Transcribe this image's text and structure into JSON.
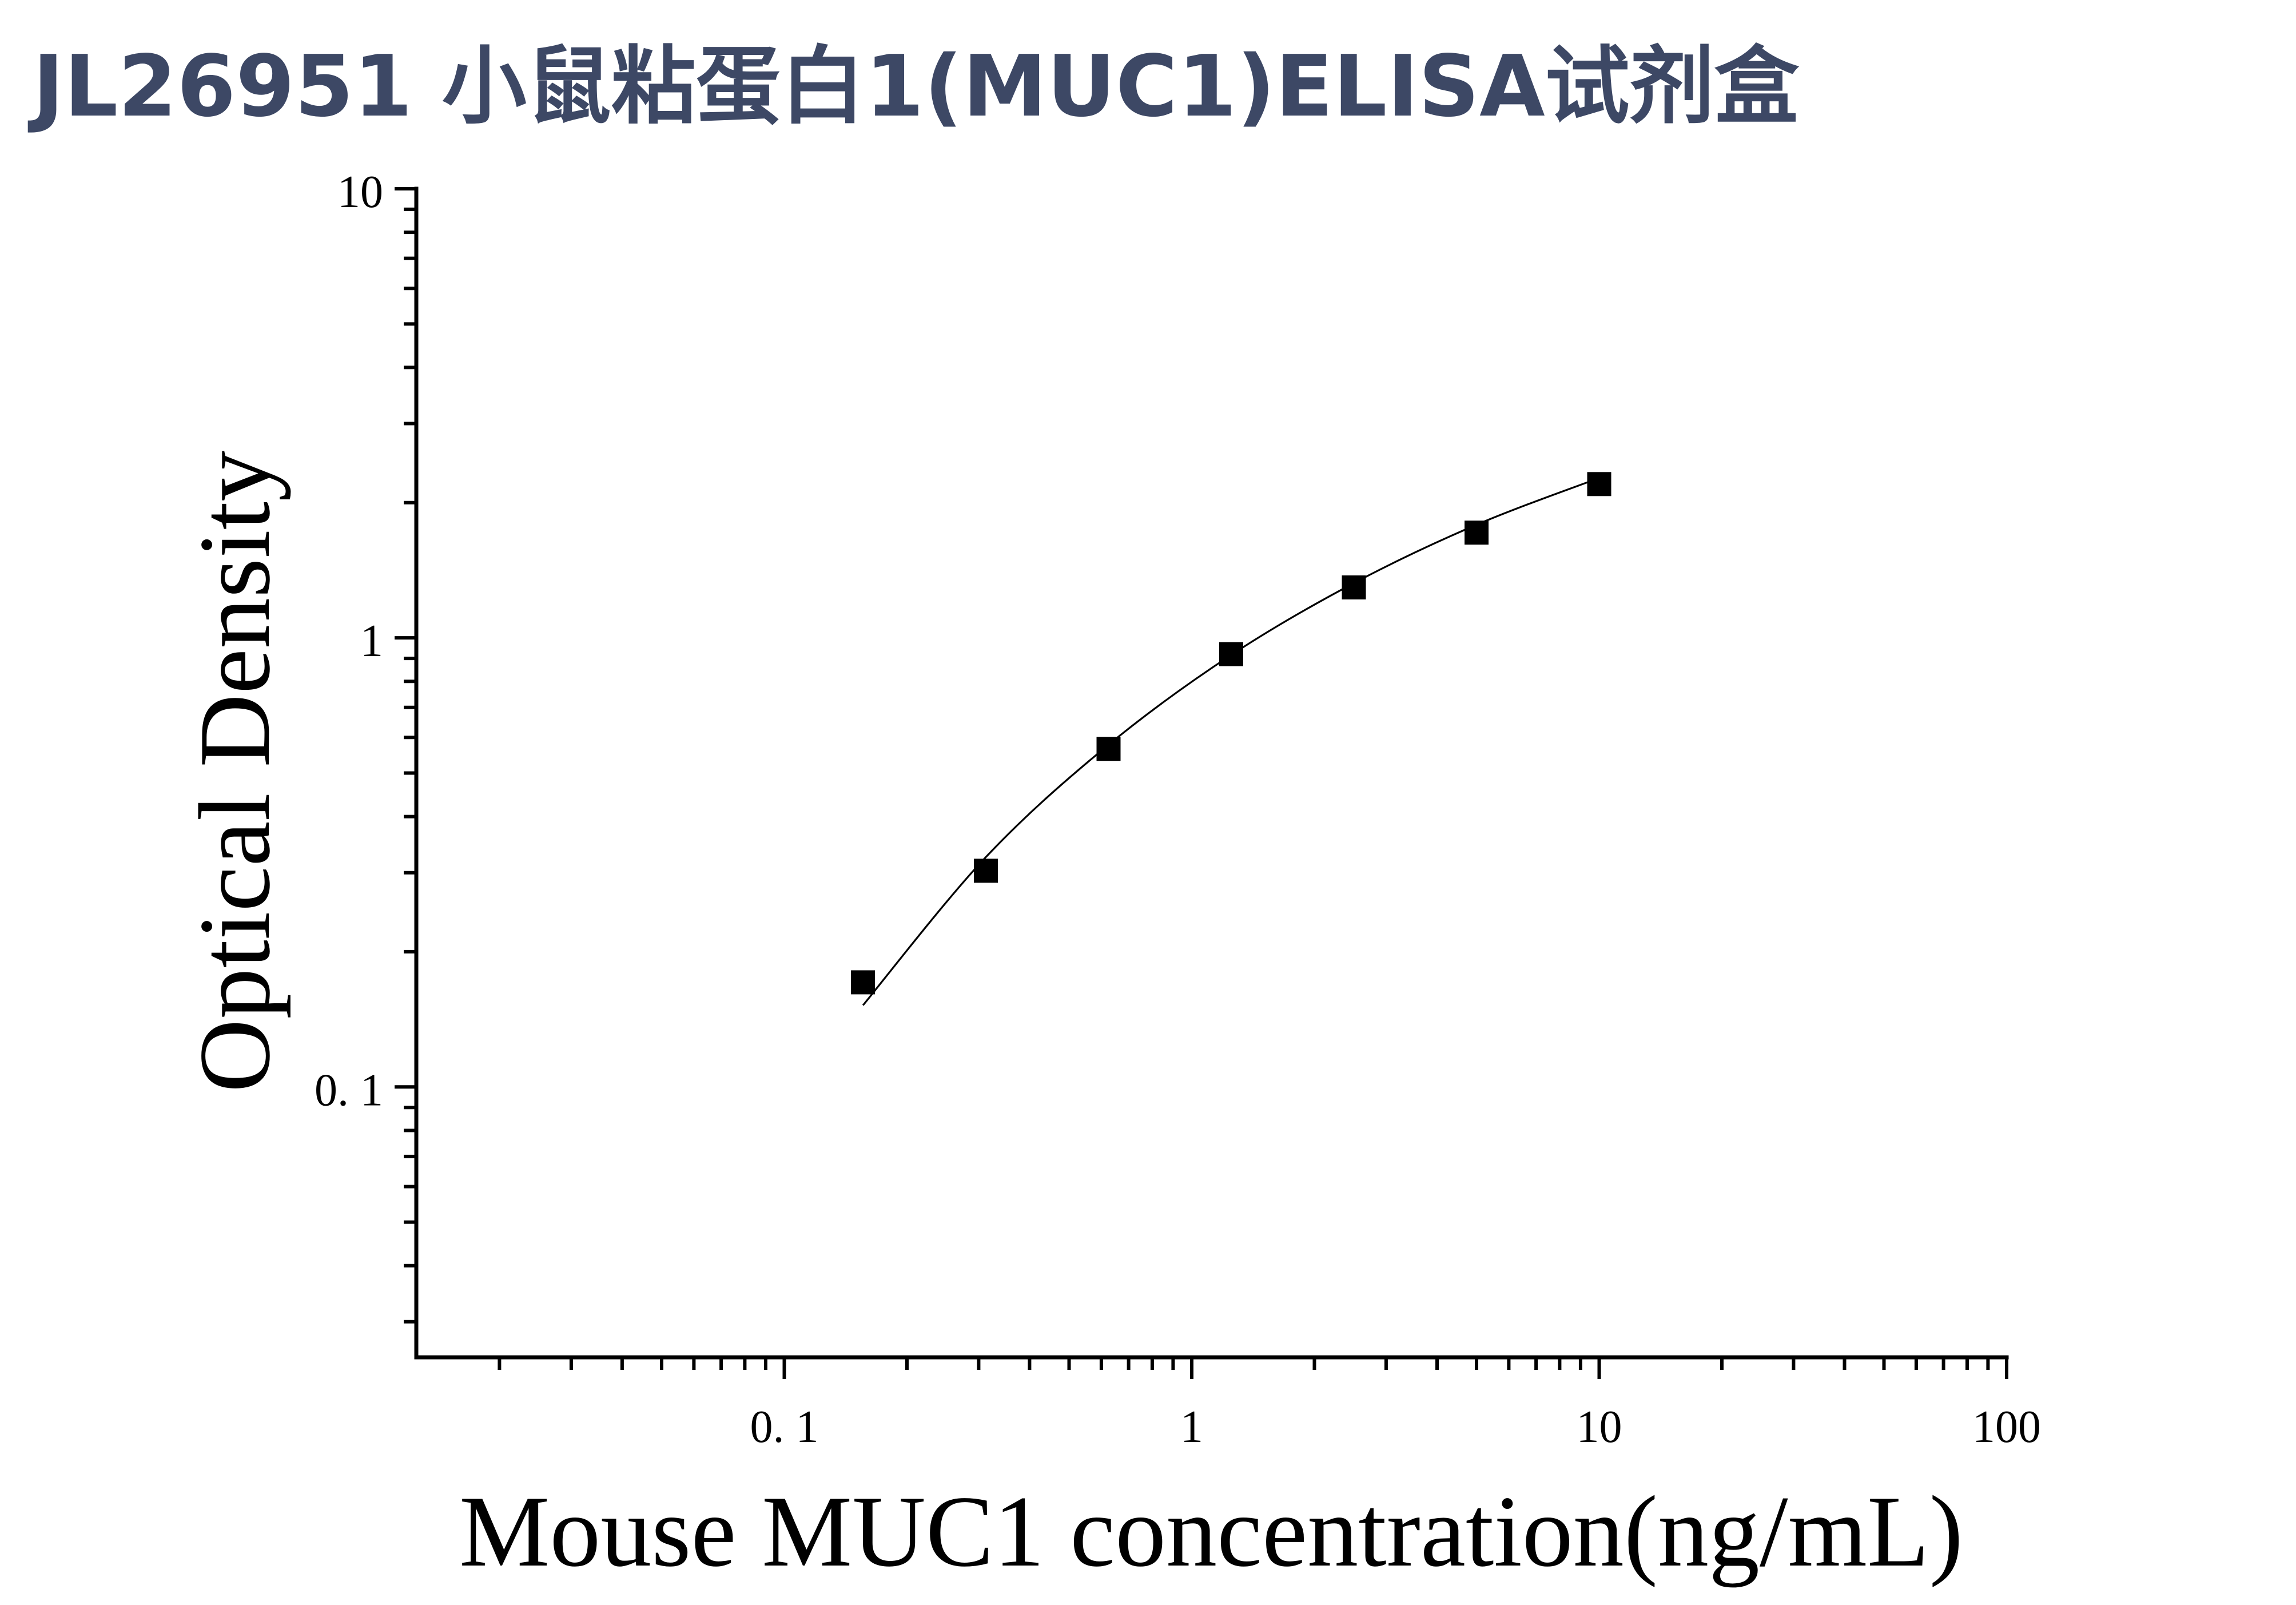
{
  "chart_data": {
    "type": "scatter",
    "title": "JL26951 小鼠粘蛋白1(MUC1)ELISA试剂盒",
    "xlabel": "Mouse MUC1 concentration(ng/mL)",
    "ylabel": "Optical Density",
    "xscale": "log",
    "yscale": "log",
    "xlim": [
      0.0125,
      100
    ],
    "ylim": [
      0.025,
      10
    ],
    "xticks": [
      0.1,
      1,
      10,
      100
    ],
    "xtick_labels": [
      "0. 1",
      "1",
      "10",
      "100"
    ],
    "yticks": [
      0.1,
      1,
      10
    ],
    "ytick_labels": [
      "0. 1",
      "1",
      "10"
    ],
    "grid": false,
    "series": [
      {
        "type": "scatter",
        "marker": "square",
        "color": "#000000",
        "x": [
          0.156,
          0.3125,
          0.625,
          1.25,
          2.5,
          5,
          10
        ],
        "y": [
          0.171,
          0.303,
          0.566,
          0.92,
          1.295,
          1.715,
          2.2
        ]
      },
      {
        "type": "line",
        "color": "#000000",
        "x": [
          0.156,
          0.3125,
          0.625,
          1.25,
          2.5,
          5,
          10
        ],
        "y": [
          0.152,
          0.325,
          0.578,
          0.916,
          1.324,
          1.786,
          2.27
        ]
      }
    ]
  },
  "colors": {
    "title": "#3d4865",
    "axes": "#000000",
    "background": "#ffffff"
  }
}
